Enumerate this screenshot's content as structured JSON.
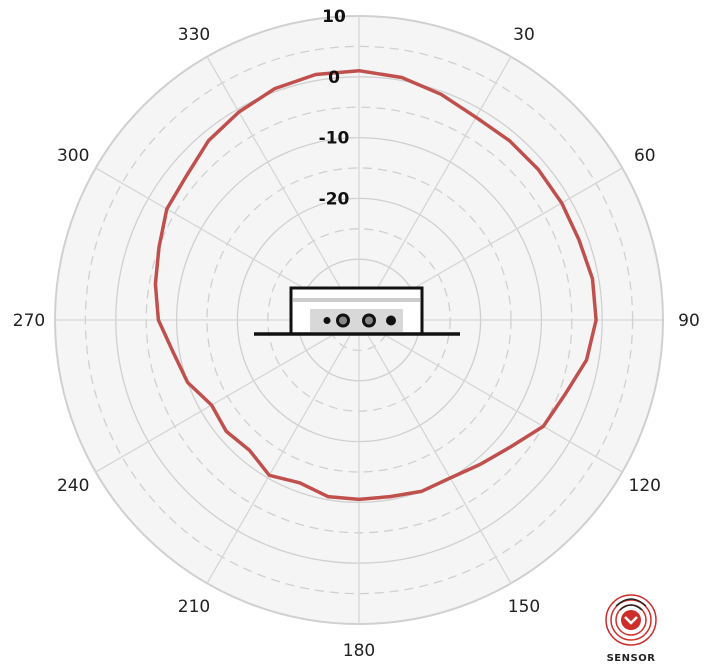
{
  "chart_data": {
    "type": "polar",
    "angle_direction": "clockwise",
    "angle_zero": "top",
    "angle_ticks": [
      0,
      30,
      60,
      90,
      120,
      150,
      180,
      210,
      240,
      270,
      300,
      330
    ],
    "angle_tick_labels": [
      "",
      "30",
      "60",
      "90",
      "120",
      "150",
      "180",
      "210",
      "240",
      "270",
      "300",
      "330"
    ],
    "radial_ticks": [
      10,
      0,
      -10,
      -20
    ],
    "radial_tick_labels": [
      "10",
      "0",
      "-10",
      "-20"
    ],
    "r_max": 10,
    "r_min": -40,
    "grid": true,
    "series": [
      {
        "color": "#c0504d",
        "theta": [
          0,
          10,
          20,
          30,
          40,
          50,
          60,
          70,
          80,
          90,
          100,
          110,
          120,
          130,
          140,
          150,
          160,
          170,
          180,
          190,
          200,
          210,
          220,
          230,
          240,
          250,
          260,
          270,
          280,
          290,
          300,
          310,
          320,
          330,
          340,
          350
        ],
        "r": [
          1,
          0.5,
          -0.5,
          -1.5,
          -1.5,
          -1.5,
          -1.5,
          -1.5,
          -1.0,
          -1.0,
          -2.0,
          -4.0,
          -5.0,
          -7.5,
          -9.0,
          -10.0,
          -10.0,
          -10.5,
          -10.5,
          -10.5,
          -11.5,
          -10.5,
          -12.0,
          -11.5,
          -12.0,
          -10.0,
          -9.0,
          -7.0,
          -6.0,
          -5.0,
          -3.5,
          -3.0,
          -1.5,
          -0.5,
          0.5,
          1.0
        ]
      }
    ]
  },
  "logo": {
    "text": "SENSOR"
  }
}
